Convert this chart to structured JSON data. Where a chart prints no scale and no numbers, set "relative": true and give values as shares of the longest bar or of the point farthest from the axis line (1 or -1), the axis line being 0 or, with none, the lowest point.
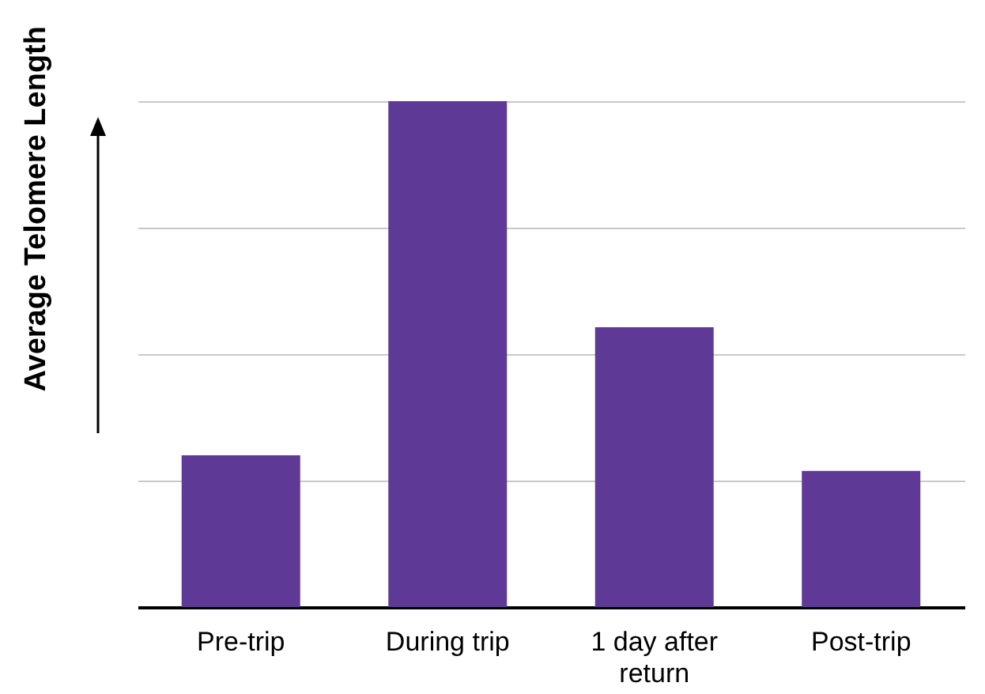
{
  "chart_data": {
    "type": "bar",
    "ylabel": "Average Telomere Length",
    "categories": [
      "Pre-trip",
      "During trip",
      "1 day after return",
      "Post-trip"
    ],
    "values": [
      0.3,
      1,
      0.553,
      0.269
    ],
    "color": "#5e3a96",
    "relative": true,
    "grid": "y"
  }
}
